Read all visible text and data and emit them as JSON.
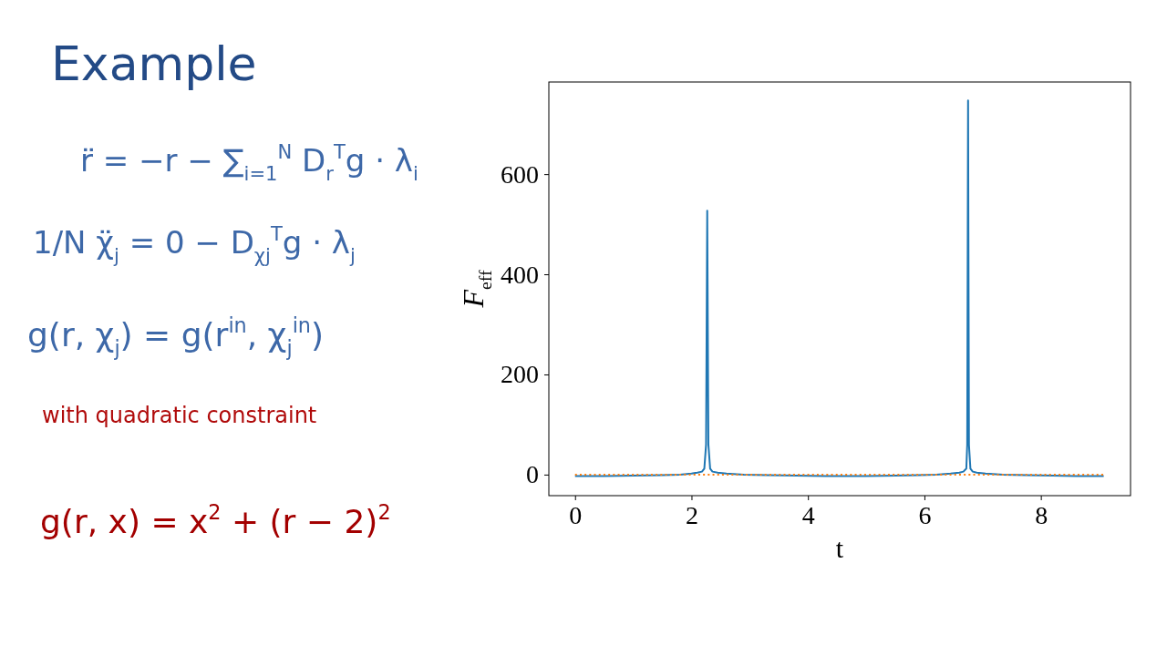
{
  "chart_data": {
    "type": "line",
    "xlabel": "t",
    "ylabel": "F$_{eff}$",
    "annotations": [
      "Example",
      "r̈ = −r − ∑$_{i=1}$$^{N}$ D$_{r}$$^{T}$g · λ$_{i}$",
      "1/N χ̈$_{j}$ = 0 − D$_{χj}$$^{T}$g · λ$_{j}$",
      "g(r, χ$_{j}$) = g(r$^{in}$, χ$_{j}$$^{in}$)",
      "with quadratic constraint",
      "g(r, x) = x$^{2}$ + (r − 2)$^{2}$"
    ],
    "xlim": [
      -0.45,
      9.54
    ],
    "ylim": [
      -42,
      784
    ],
    "xticks": [
      0,
      2,
      4,
      6,
      8
    ],
    "yticks": [
      0,
      200,
      400,
      600
    ],
    "series": [
      {
        "color": "#1f77b4",
        "line_style": "solid",
        "x": [
          0,
          0.5,
          1.0,
          1.5,
          1.8,
          2.0,
          2.1,
          2.18,
          2.22,
          2.25,
          2.27,
          2.29,
          2.32,
          2.36,
          2.45,
          2.6,
          2.9,
          3.3,
          3.8,
          4.3,
          5.0,
          5.5,
          5.9,
          6.2,
          6.45,
          6.6,
          6.67,
          6.72,
          6.735,
          6.75,
          6.765,
          6.79,
          6.83,
          6.9,
          7.05,
          7.35,
          7.75,
          8.2,
          8.6,
          9.08
        ],
        "values": [
          -3,
          -3,
          -2,
          -1,
          0,
          2,
          4,
          6,
          12,
          60,
          527,
          60,
          12,
          6,
          4,
          2,
          0,
          -1,
          -2,
          -3,
          -3,
          -2,
          -1,
          0,
          2,
          4,
          6,
          12,
          60,
          747,
          60,
          12,
          6,
          4,
          2,
          0,
          -1,
          -2,
          -3,
          -3
        ]
      },
      {
        "color": "#ff7f0e",
        "line_style": "dotted",
        "x": [
          0,
          9.08
        ],
        "values": [
          0,
          0
        ]
      }
    ]
  }
}
